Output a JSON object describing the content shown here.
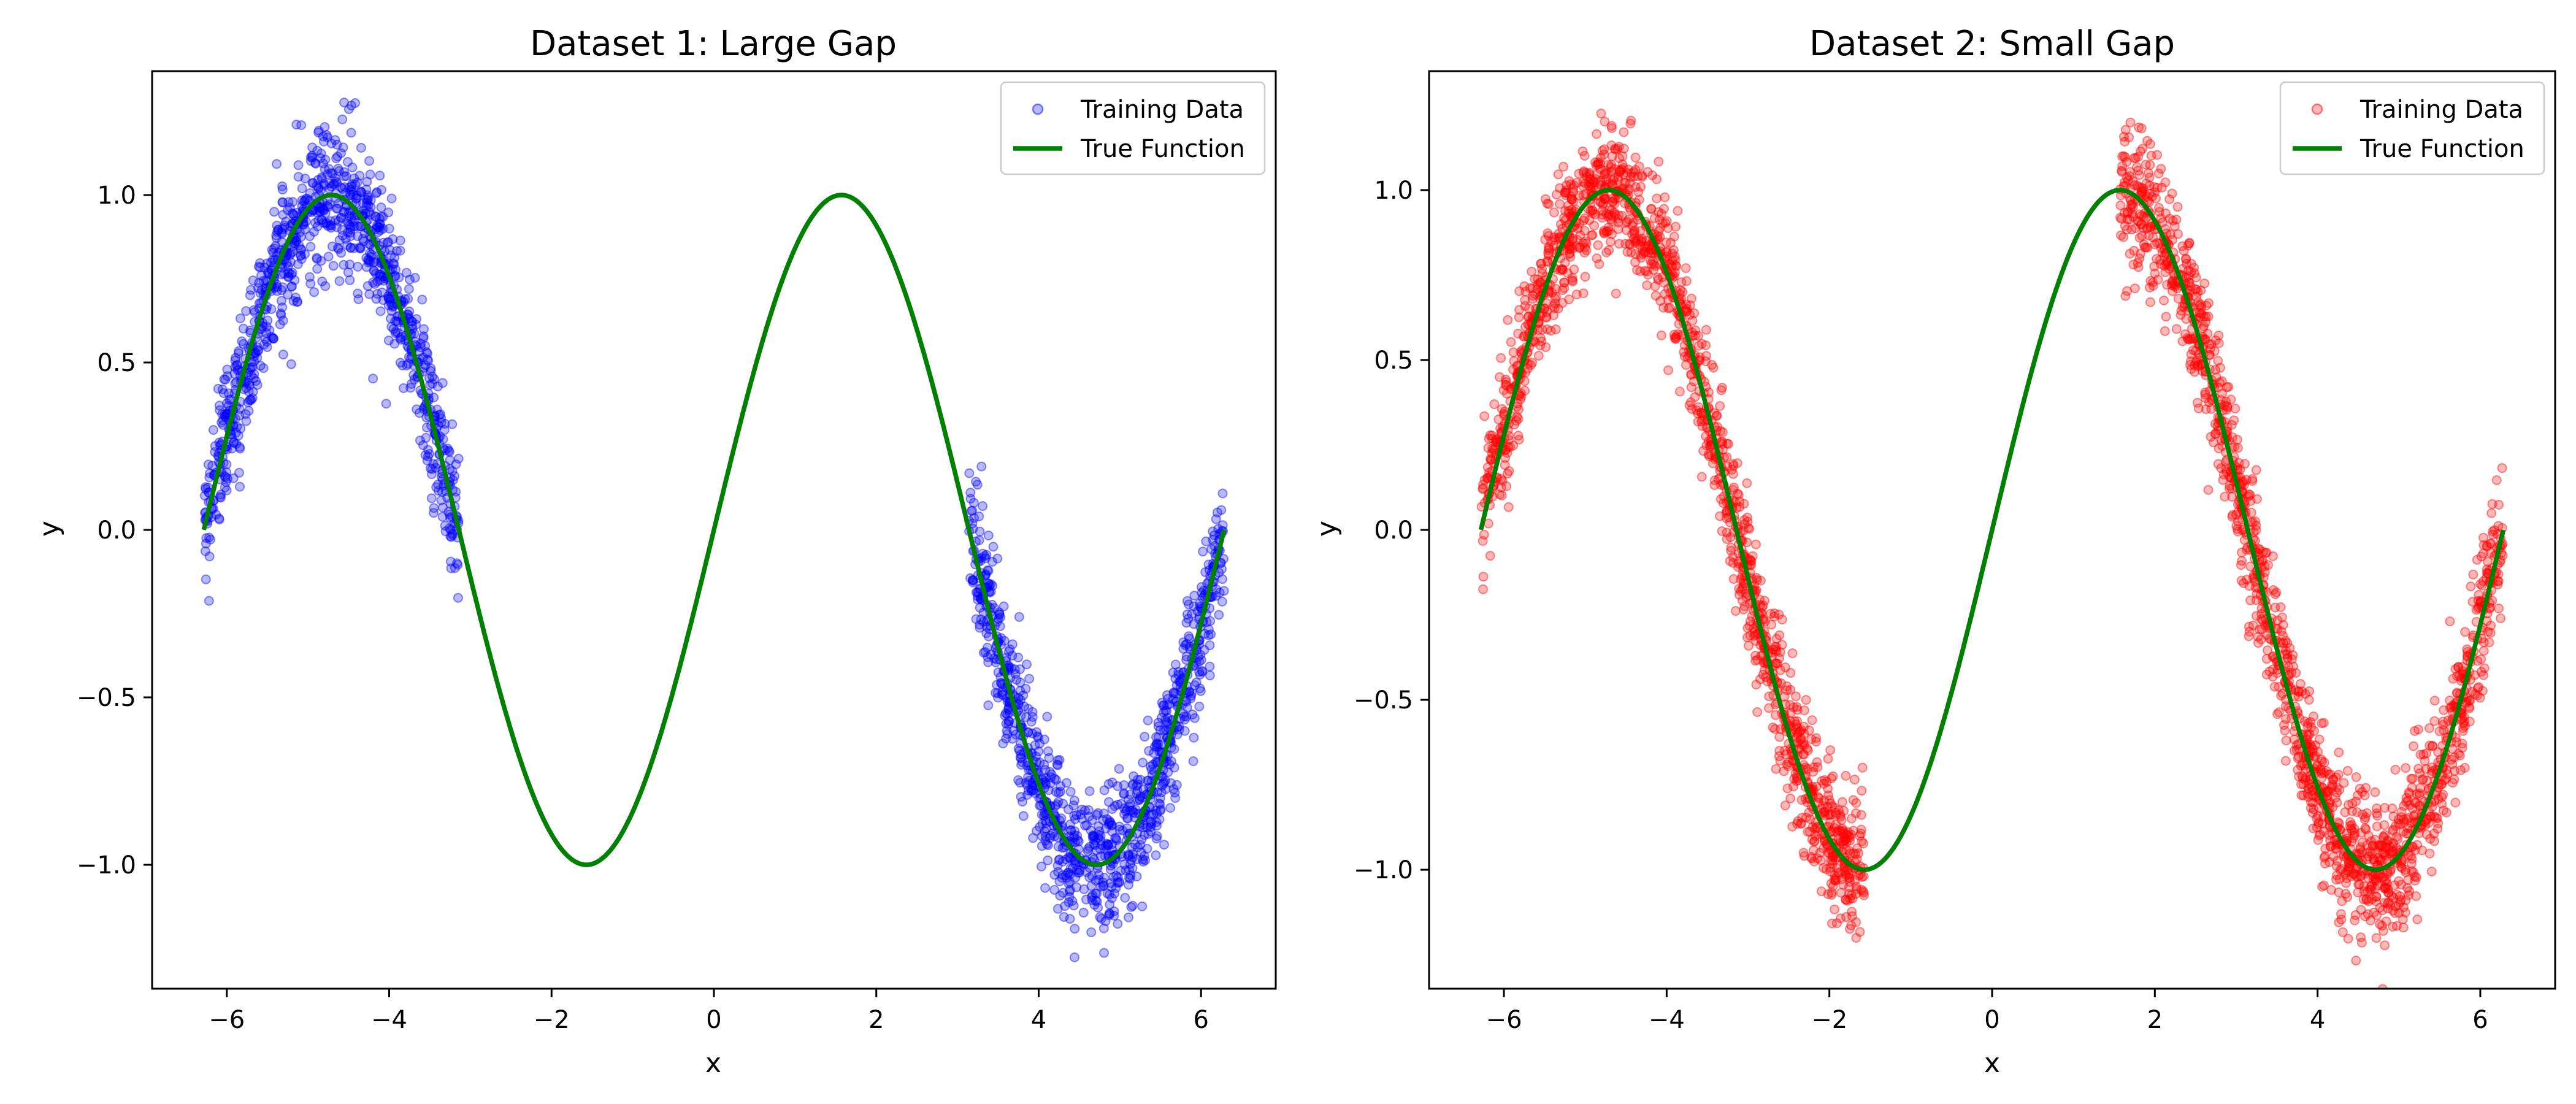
{
  "chart_data": [
    {
      "type": "scatter",
      "title": "Dataset 1: Large Gap",
      "xlabel": "x",
      "ylabel": "y",
      "xlim": [
        -6.92,
        6.92
      ],
      "ylim": [
        -1.37,
        1.37
      ],
      "xticks": [
        -6,
        -4,
        -2,
        0,
        2,
        4,
        6
      ],
      "xtick_labels": [
        "−6",
        "−4",
        "−2",
        "0",
        "2",
        "4",
        "6"
      ],
      "yticks": [
        -1.0,
        -0.5,
        0.0,
        0.5,
        1.0
      ],
      "ytick_labels": [
        "−1.0",
        "−0.5",
        "0.0",
        "0.5",
        "1.0"
      ],
      "grid": false,
      "legend_position": "top-right",
      "series": [
        {
          "name": "Training Data",
          "kind": "scatter",
          "color": "#0000ff",
          "x_ranges": [
            [
              -6.283,
              -3.142
            ],
            [
              3.142,
              6.283
            ]
          ],
          "relation": "y = sin(x) + noise",
          "noise_std": 0.1,
          "n_points": 2000
        },
        {
          "name": "True Function",
          "kind": "line",
          "color": "#008000",
          "relation": "y = sin(x)",
          "x_range": [
            -6.283,
            6.283
          ]
        }
      ]
    },
    {
      "type": "scatter",
      "title": "Dataset 2: Small Gap",
      "xlabel": "x",
      "ylabel": "y",
      "xlim": [
        -6.92,
        6.92
      ],
      "ylim": [
        -1.35,
        1.35
      ],
      "xticks": [
        -6,
        -4,
        -2,
        0,
        2,
        4,
        6
      ],
      "xtick_labels": [
        "−6",
        "−4",
        "−2",
        "0",
        "2",
        "4",
        "6"
      ],
      "yticks": [
        -1.0,
        -0.5,
        0.0,
        0.5,
        1.0
      ],
      "ytick_labels": [
        "−1.0",
        "−0.5",
        "0.0",
        "0.5",
        "1.0"
      ],
      "grid": false,
      "legend_position": "top-right",
      "series": [
        {
          "name": "Training Data",
          "kind": "scatter",
          "color": "#ff0000",
          "x_ranges": [
            [
              -6.283,
              -1.571
            ],
            [
              1.571,
              6.283
            ]
          ],
          "relation": "y = sin(x) + noise",
          "noise_std": 0.1,
          "n_points": 3000
        },
        {
          "name": "True Function",
          "kind": "line",
          "color": "#008000",
          "relation": "y = sin(x)",
          "x_range": [
            -6.283,
            6.283
          ]
        }
      ]
    }
  ]
}
